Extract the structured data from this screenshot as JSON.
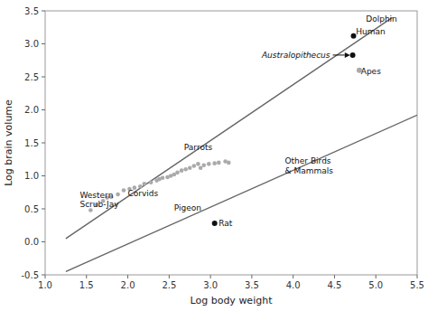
{
  "chart_data": {
    "type": "scatter",
    "xlabel": "Log body weight",
    "ylabel": "Log brain volume",
    "xlim": [
      1,
      5.5
    ],
    "ylim": [
      -0.5,
      3.5
    ],
    "xticks": [
      {
        "value": 1,
        "label": "1.0"
      },
      1.5,
      {
        "value": 2,
        "label": "2.0"
      },
      2.5,
      {
        "value": 3,
        "label": "3.0"
      },
      3.5,
      {
        "value": 4,
        "label": "4.0"
      },
      4.5,
      {
        "value": 5,
        "label": "5.0"
      },
      5.5
    ],
    "yticks": [
      -0.5,
      {
        "value": 0,
        "label": "0.0"
      },
      0.5,
      {
        "value": 1,
        "label": "1.0"
      },
      1.5,
      {
        "value": 2,
        "label": "2.0"
      },
      2.5,
      {
        "value": 3,
        "label": "3.0"
      },
      3.5
    ],
    "grid": false,
    "series": [
      {
        "type": "line",
        "color": "#666666",
        "x": [
          1.25,
          5.2
        ],
        "y": [
          0.05,
          3.4
        ]
      },
      {
        "type": "line",
        "color": "#666666",
        "x": [
          1.25,
          5.5
        ],
        "y": [
          -0.45,
          1.92
        ]
      },
      {
        "type": "scatter",
        "color": "#aaaaaa",
        "x": [
          1.55,
          1.62,
          1.7,
          1.75,
          1.8,
          1.88,
          1.95,
          2.02,
          2.08,
          2.15,
          2.2,
          2.28,
          2.35,
          2.38,
          2.42,
          2.48,
          2.52,
          2.56,
          2.6,
          2.65,
          2.7,
          2.75,
          2.8,
          2.85,
          2.88,
          2.92,
          2.98,
          3.05,
          3.1,
          3.18,
          3.22
        ],
        "y": [
          0.48,
          0.56,
          0.62,
          0.67,
          0.68,
          0.72,
          0.78,
          0.8,
          0.82,
          0.84,
          0.88,
          0.9,
          0.93,
          0.95,
          0.97,
          0.98,
          1.0,
          1.02,
          1.05,
          1.08,
          1.1,
          1.12,
          1.15,
          1.18,
          1.12,
          1.16,
          1.18,
          1.19,
          1.2,
          1.22,
          1.2
        ]
      },
      {
        "type": "scatter",
        "colors": [
          "#111111",
          "#111111",
          "#aaaaaa",
          "#111111"
        ],
        "x": [
          4.73,
          4.72,
          4.8,
          3.05
        ],
        "y": [
          3.12,
          2.83,
          2.6,
          0.28
        ]
      }
    ],
    "annotations": [
      {
        "text": "Western\nScrub-Jay",
        "x": 1.42,
        "y": 0.64
      },
      {
        "text": "Corvids",
        "x": 2.0,
        "y": 0.73
      },
      {
        "text": "Parrots",
        "x": 2.68,
        "y": 1.43
      },
      {
        "text": "Pigeon",
        "x": 2.56,
        "y": 0.51
      },
      {
        "text": "Rat",
        "x": 3.1,
        "y": 0.28
      },
      {
        "text": "Other Birds\n& Mammals",
        "x": 3.9,
        "y": 1.15
      },
      {
        "text": "Human",
        "x": 4.76,
        "y": 3.18
      },
      {
        "text": "Apes",
        "x": 4.82,
        "y": 2.58
      },
      {
        "text": "Dolphin",
        "x": 4.88,
        "y": 3.38
      },
      {
        "text": "Australopithecus",
        "x": 3.62,
        "y": 2.83,
        "arrow_x": 4.69,
        "arrow_y": 2.83
      }
    ]
  }
}
